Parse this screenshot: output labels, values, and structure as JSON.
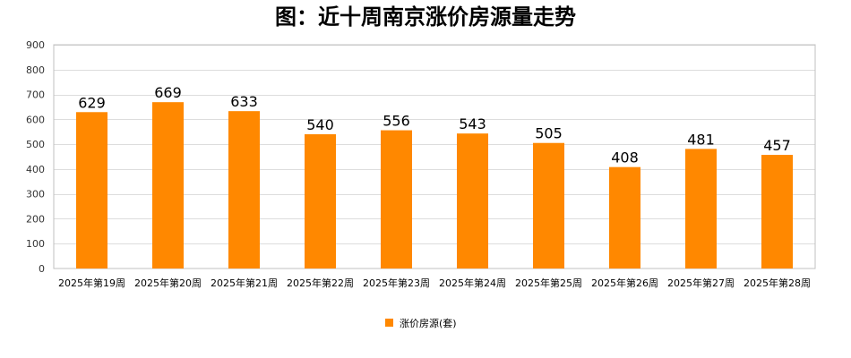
{
  "chart_data": {
    "type": "bar",
    "title": "图：近十周南京涨价房源量走势",
    "xlabel": "",
    "ylabel": "",
    "categories": [
      "2025年第19周",
      "2025年第20周",
      "2025年第21周",
      "2025年第22周",
      "2025年第23周",
      "2025年第24周",
      "2025年第25周",
      "2025年第26周",
      "2025年第27周",
      "2025年第28周"
    ],
    "series": [
      {
        "name": "涨价房源(套)",
        "values": [
          629,
          669,
          633,
          540,
          556,
          543,
          505,
          408,
          481,
          457
        ],
        "color": "#FF8800"
      }
    ],
    "ylim": [
      0,
      900
    ],
    "yticks": [
      0,
      100,
      200,
      300,
      400,
      500,
      600,
      700,
      800,
      900
    ],
    "grid": true,
    "legend_position": "bottom-center",
    "data_labels": true
  },
  "colors": {
    "plot_border": "#c0c0c0",
    "grid": "#dddddd",
    "background": "#ffffff"
  }
}
